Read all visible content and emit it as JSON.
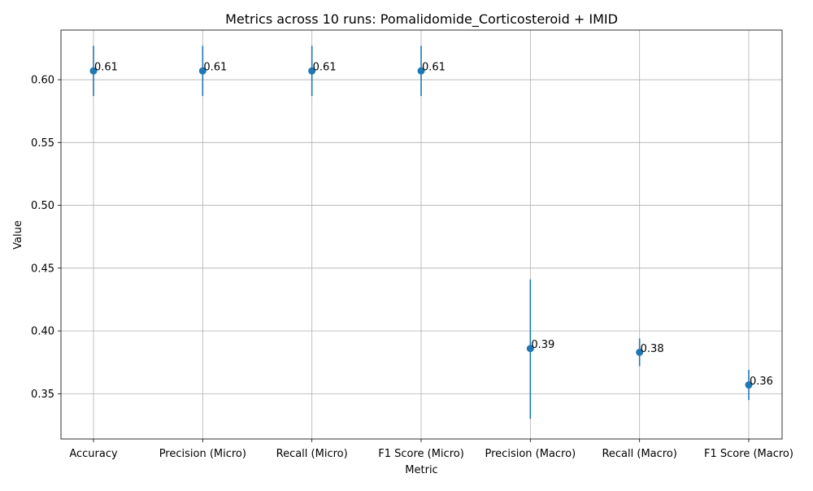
{
  "chart_data": {
    "type": "scatter",
    "title": "Metrics across 10 runs: Pomalidomide_Corticosteroid + IMID",
    "xlabel": "Metric",
    "ylabel": "Value",
    "categories": [
      "Accuracy",
      "Precision (Micro)",
      "Recall (Micro)",
      "F1 Score (Micro)",
      "Precision (Macro)",
      "Recall (Macro)",
      "F1 Score (Macro)"
    ],
    "values": [
      0.607,
      0.607,
      0.607,
      0.607,
      0.386,
      0.383,
      0.357
    ],
    "error_low": [
      0.587,
      0.587,
      0.587,
      0.587,
      0.33,
      0.372,
      0.345
    ],
    "error_high": [
      0.627,
      0.627,
      0.627,
      0.627,
      0.441,
      0.394,
      0.369
    ],
    "data_labels": [
      "0.61",
      "0.61",
      "0.61",
      "0.61",
      "0.39",
      "0.38",
      "0.36"
    ],
    "yticks": [
      "0.35",
      "0.40",
      "0.45",
      "0.50",
      "0.55",
      "0.60"
    ],
    "ylim": [
      0.314,
      0.6395
    ],
    "grid": true,
    "colors": {
      "series": "#1f77b4",
      "grid": "#b0b0b0",
      "axis": "#000000"
    }
  }
}
